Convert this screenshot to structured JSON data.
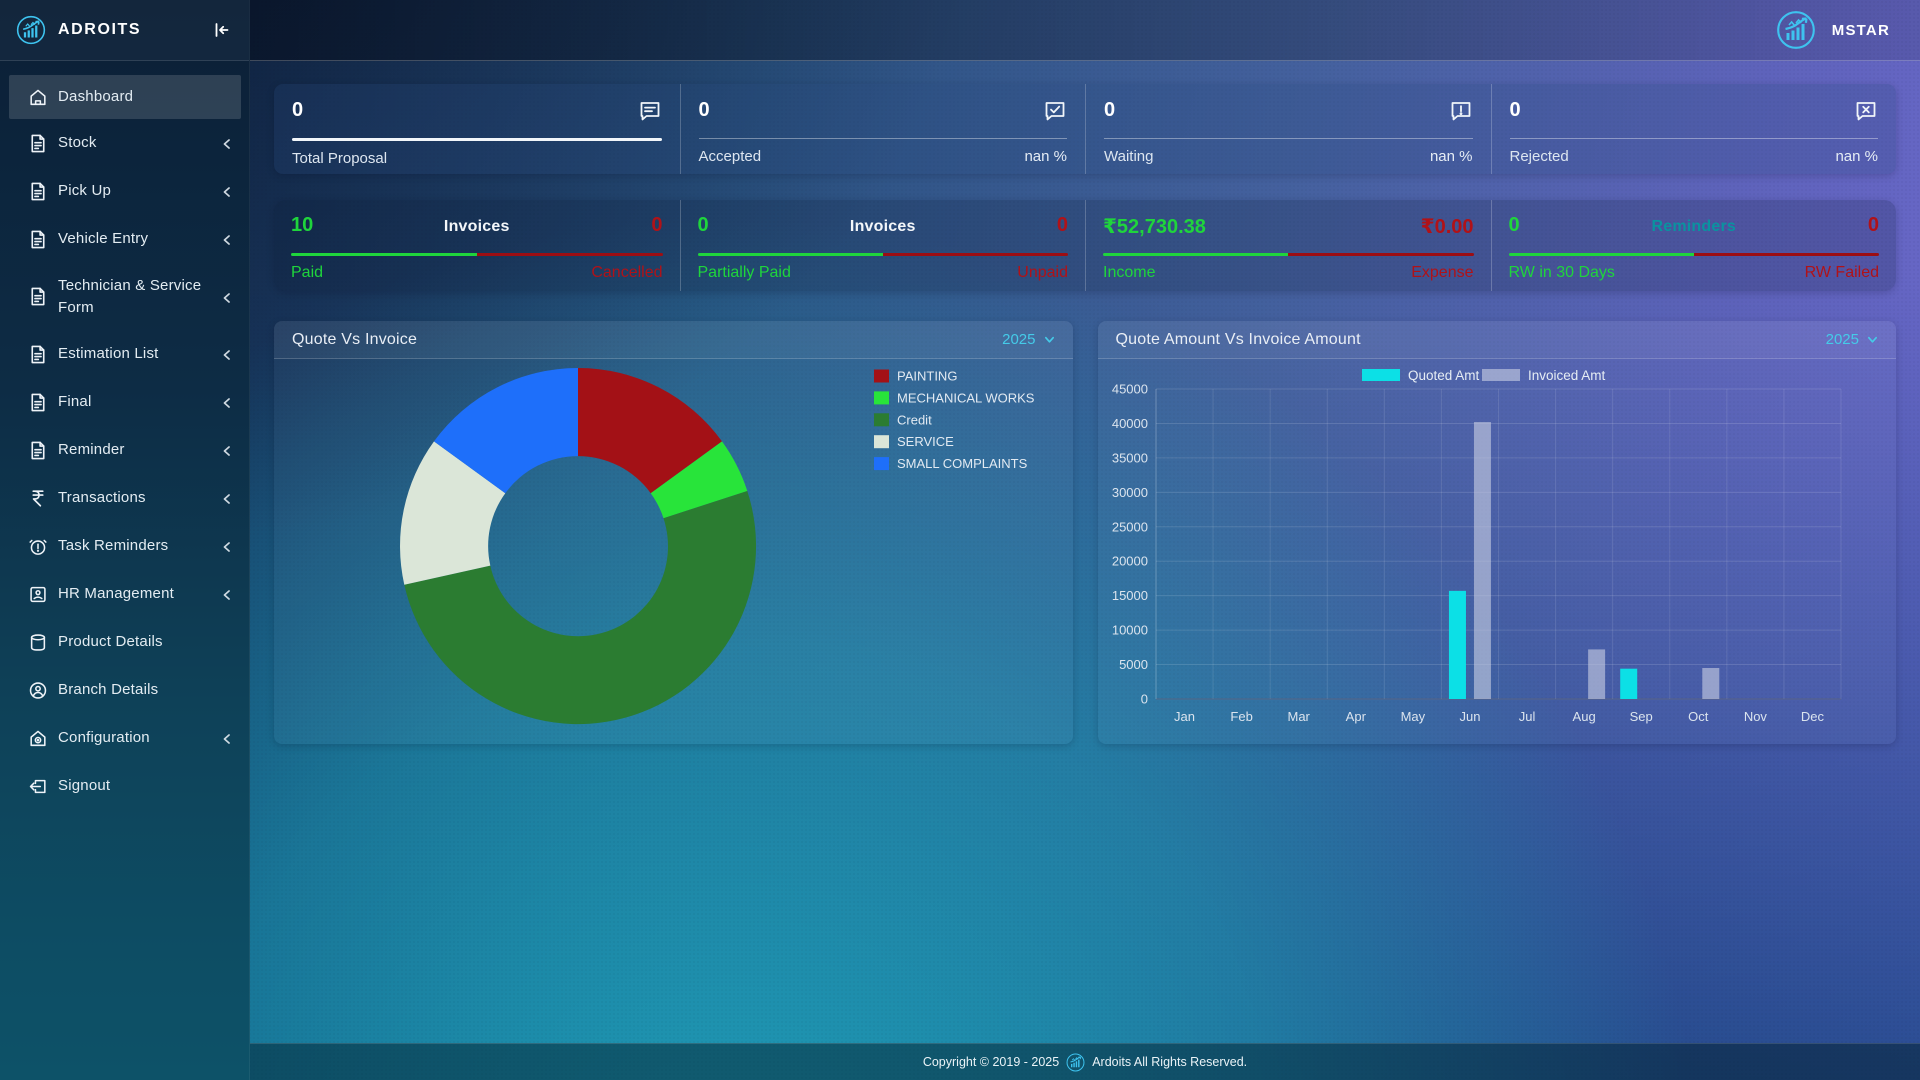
{
  "app": {
    "brand": "ADROITS",
    "user": "MSTAR",
    "footer_pre": "Copyright © 2019 - 2025",
    "footer_post": "Ardoits All Rights Reserved."
  },
  "sidebar": {
    "items": [
      {
        "label": "Dashboard",
        "icon": "home",
        "active": true,
        "expandable": false
      },
      {
        "label": "Stock",
        "icon": "document",
        "expandable": true
      },
      {
        "label": "Pick Up",
        "icon": "document",
        "expandable": true
      },
      {
        "label": "Vehicle Entry",
        "icon": "document",
        "expandable": true
      },
      {
        "label": "Technician & Service Form",
        "icon": "document",
        "expandable": true
      },
      {
        "label": "Estimation List",
        "icon": "document",
        "expandable": true
      },
      {
        "label": "Final",
        "icon": "document",
        "expandable": true
      },
      {
        "label": "Reminder",
        "icon": "document",
        "expandable": true
      },
      {
        "label": "Transactions",
        "icon": "rupee",
        "expandable": true
      },
      {
        "label": "Task Reminders",
        "icon": "alarm",
        "expandable": true
      },
      {
        "label": "HR Management",
        "icon": "badge",
        "expandable": true
      },
      {
        "label": "Product Details",
        "icon": "database",
        "expandable": false
      },
      {
        "label": "Branch Details",
        "icon": "person",
        "expandable": false
      },
      {
        "label": "Configuration",
        "icon": "config",
        "expandable": true
      },
      {
        "label": "Signout",
        "icon": "signout",
        "expandable": false
      }
    ]
  },
  "stats_top": [
    {
      "value": "0",
      "label": "Total Proposal",
      "pct": "",
      "icon": "message-lines",
      "highlight": true
    },
    {
      "value": "0",
      "label": "Accepted",
      "pct": "nan %",
      "icon": "message-check",
      "highlight": false
    },
    {
      "value": "0",
      "label": "Waiting",
      "pct": "nan %",
      "icon": "message-exclamation",
      "highlight": false
    },
    {
      "value": "0",
      "label": "Rejected",
      "pct": "nan %",
      "icon": "message-x",
      "highlight": false
    }
  ],
  "stats_progress": [
    {
      "left_value": "10",
      "center_label": "Invoices",
      "right_value": "0",
      "left_label": "Paid",
      "right_label": "Cancelled",
      "center_style": "white"
    },
    {
      "left_value": "0",
      "center_label": "Invoices",
      "right_value": "0",
      "left_label": "Partially Paid",
      "right_label": "Unpaid",
      "center_style": "white"
    },
    {
      "left_value": "₹52,730.38",
      "center_label": "",
      "right_value": "₹0.00",
      "left_label": "Income",
      "right_label": "Expense",
      "center_style": "white"
    },
    {
      "left_value": "0",
      "center_label": "Reminders",
      "right_value": "0",
      "left_label": "RW in 30 Days",
      "right_label": "RW Failed",
      "center_style": "teal"
    }
  ],
  "colors": {
    "positive_green": "#1fd53c",
    "negative_red": "#b01218",
    "progress_bar_red": "#9c0e13",
    "reminders_teal": "#0a93a0",
    "accent_cyan": "#45cbe8",
    "logo_blue": "#3ec3ef"
  },
  "chart_data": [
    {
      "type": "pie",
      "title": "Quote Vs Invoice",
      "year": "2025",
      "labels": [
        "PAINTING",
        "MECHANICAL WORKS",
        "Credit",
        "SERVICE",
        "SMALL COMPLAINTS"
      ],
      "values": [
        15,
        5,
        51.5,
        13.5,
        15
      ],
      "colors": [
        "#a31116",
        "#28e43a",
        "#2b7c31",
        "#dbe6d8",
        "#1e6ffa"
      ],
      "donut_hole": 0.505,
      "legend_position": "right"
    },
    {
      "type": "bar",
      "title": "Quote Amount Vs Invoice Amount",
      "year": "2025",
      "categories": [
        "Jan",
        "Feb",
        "Mar",
        "Apr",
        "May",
        "Jun",
        "Jul",
        "Aug",
        "Sep",
        "Oct",
        "Nov",
        "Dec"
      ],
      "series": [
        {
          "name": "Quoted Amt",
          "color": "#0ce0e6",
          "values": [
            0,
            0,
            0,
            0,
            0,
            15700,
            0,
            0,
            4400,
            0,
            0,
            0
          ]
        },
        {
          "name": "Invoiced Amt",
          "color": "rgba(203,209,228,0.60)",
          "values": [
            0,
            0,
            0,
            0,
            0,
            40200,
            0,
            7200,
            0,
            4500,
            0,
            0
          ]
        }
      ],
      "ylim": [
        0,
        45000
      ],
      "ytick_step": 5000,
      "grid": true,
      "legend_position": "top"
    }
  ]
}
